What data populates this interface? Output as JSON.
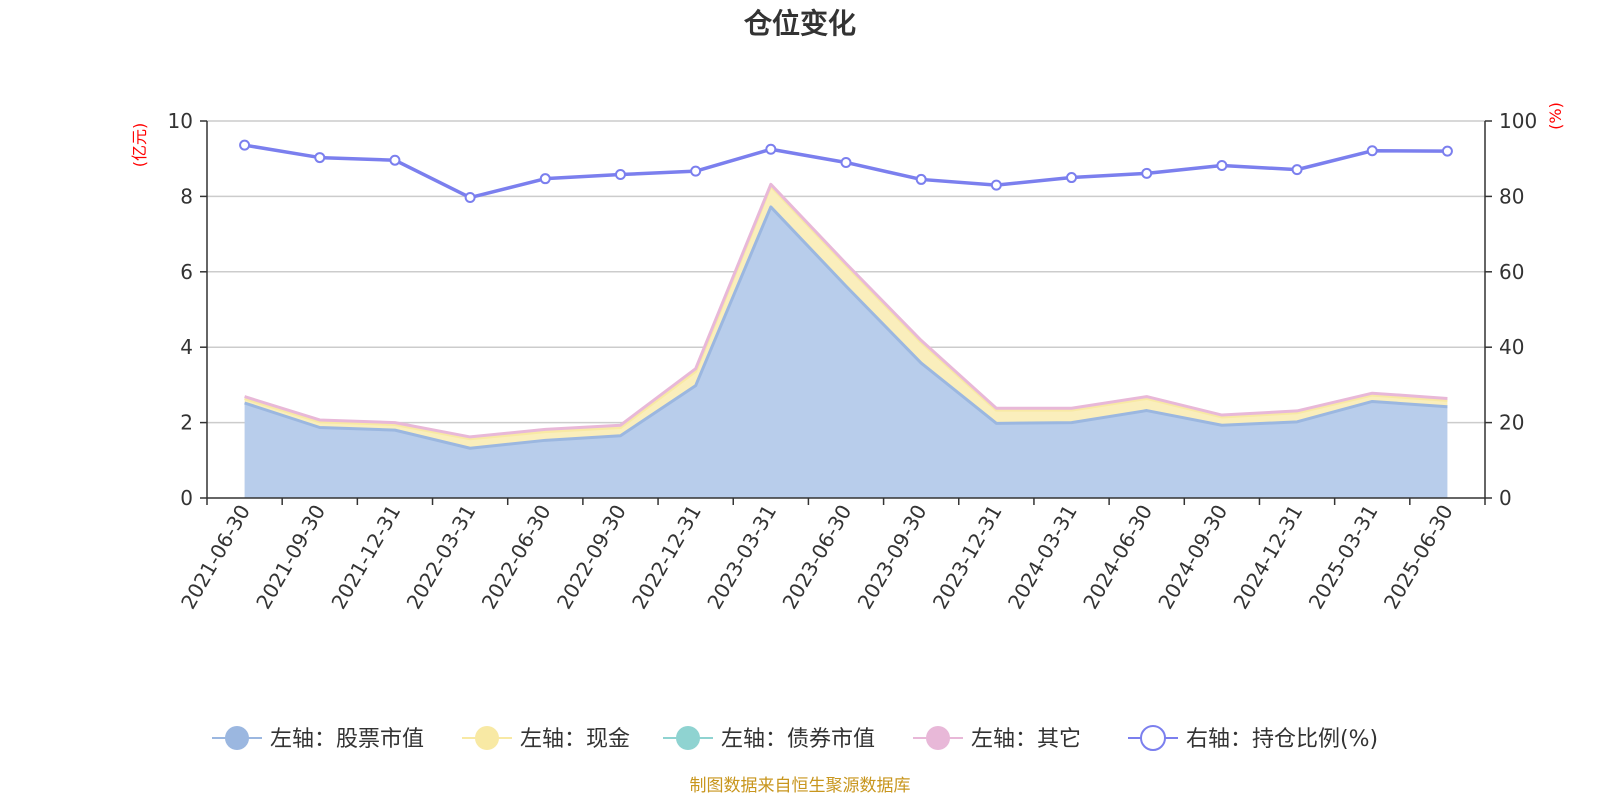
{
  "chart_data": {
    "type": "area",
    "title": "仓位变化",
    "y_left_unit": "(亿元)",
    "y_right_unit": "(%)",
    "x": [
      "2021-06-30",
      "2021-09-30",
      "2021-12-31",
      "2022-03-31",
      "2022-06-30",
      "2022-09-30",
      "2022-12-31",
      "2023-03-31",
      "2023-06-30",
      "2023-09-30",
      "2023-12-31",
      "2024-03-31",
      "2024-06-30",
      "2024-09-30",
      "2024-12-31",
      "2025-03-31",
      "2025-06-30"
    ],
    "y_left_ticks": [
      "0",
      "2",
      "4",
      "6",
      "8",
      "10"
    ],
    "y_right_ticks": [
      "0",
      "20",
      "40",
      "60",
      "80",
      "100"
    ],
    "ylim_left": [
      0,
      10
    ],
    "ylim_right": [
      0,
      100
    ],
    "grid": true,
    "legend_position": "bottom",
    "series": [
      {
        "name": "左轴：股票市值",
        "axis": "left",
        "stack": true,
        "color": "#9bb7e0",
        "fill": "#b8cdeb",
        "values": [
          2.52,
          1.87,
          1.8,
          1.32,
          1.53,
          1.65,
          2.98,
          7.72,
          5.62,
          3.58,
          1.98,
          2.0,
          2.32,
          1.93,
          2.02,
          2.56,
          2.42
        ]
      },
      {
        "name": "左轴：现金",
        "axis": "left",
        "stack": true,
        "color": "#f8e9a4",
        "fill": "#faeebc",
        "values": [
          0.12,
          0.15,
          0.15,
          0.25,
          0.23,
          0.22,
          0.38,
          0.55,
          0.55,
          0.55,
          0.35,
          0.33,
          0.32,
          0.22,
          0.24,
          0.17,
          0.17
        ]
      },
      {
        "name": "左轴：债券市值",
        "axis": "left",
        "stack": true,
        "color": "#8fd3d1",
        "fill": "#b7e3e2",
        "values": [
          0,
          0,
          0,
          0,
          0,
          0,
          0,
          0,
          0,
          0,
          0,
          0,
          0,
          0,
          0,
          0,
          0
        ]
      },
      {
        "name": "左轴：其它",
        "axis": "left",
        "stack": true,
        "color": "#e8b8d8",
        "fill": "#f0cfe4",
        "values": [
          0.05,
          0.05,
          0.05,
          0.05,
          0.06,
          0.06,
          0.07,
          0.05,
          0.05,
          0.05,
          0.05,
          0.05,
          0.05,
          0.05,
          0.05,
          0.05,
          0.05
        ]
      },
      {
        "name": "右轴：持仓比例(%)",
        "axis": "right",
        "stack": false,
        "color": "#7b7fee",
        "fill": "none",
        "values": [
          93.6,
          90.3,
          89.6,
          79.7,
          84.7,
          85.8,
          86.7,
          92.5,
          89.0,
          84.5,
          83.0,
          85.0,
          86.1,
          88.2,
          87.1,
          92.1,
          92.0
        ]
      }
    ]
  },
  "source_text": "制图数据来自恒生聚源数据库"
}
